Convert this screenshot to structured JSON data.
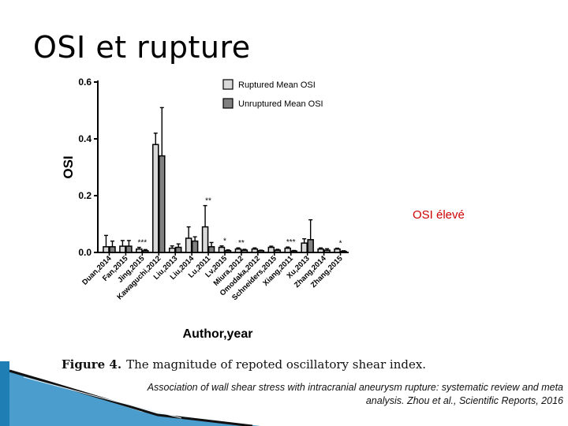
{
  "slide": {
    "title": "OSI et rupture",
    "annotation": "OSI élevé",
    "caption_label": "Figure 4.",
    "caption_text": "The magnitude of repoted oscillatory shear index.",
    "citation": "Association of wall shear stress with intracranial aneurysm rupture: systematic review and meta analysis. Zhou et al., Scientific Reports, 2016"
  },
  "colors": {
    "ruptured": "#d9d9d9",
    "unruptured": "#808080",
    "annotation": "#cc0000",
    "deco_blue": "#1f7fb5"
  },
  "chart_data": {
    "type": "bar",
    "xlabel": "Author,year",
    "ylabel": "OSI",
    "ylim": [
      0,
      0.6
    ],
    "yticks": [
      "0.0",
      "0.2",
      "0.4",
      "0.6"
    ],
    "legend_position": "top-right",
    "categories": [
      "Duan,2014",
      "Fan,2015",
      "Jing,2015",
      "Kawaguchi,2012",
      "Liu,2013",
      "Liu,2014",
      "Lu,2011",
      "Lv,2015",
      "Miura,2012",
      "Omodaka,2012",
      "Schneiders,2015",
      "Xiang,2011",
      "Xu,2013",
      "Zhang,2014",
      "Zhang,2015"
    ],
    "series": [
      {
        "name": "Ruptured Mean OSI",
        "values": [
          0.02,
          0.022,
          0.012,
          0.38,
          0.015,
          0.05,
          0.09,
          0.018,
          0.012,
          0.012,
          0.018,
          0.015,
          0.033,
          0.012,
          0.012
        ],
        "errors": [
          0.04,
          0.02,
          0.006,
          0.04,
          0.008,
          0.04,
          0.075,
          0.005,
          0.004,
          0.004,
          0.004,
          0.004,
          0.015,
          0.004,
          0.003
        ]
      },
      {
        "name": "Unruptured Mean OSI",
        "values": [
          0.02,
          0.022,
          0.006,
          0.34,
          0.018,
          0.04,
          0.02,
          0.006,
          0.008,
          0.006,
          0.008,
          0.005,
          0.045,
          0.008,
          0.004
        ],
        "errors": [
          0.02,
          0.02,
          0.004,
          0.17,
          0.012,
          0.015,
          0.015,
          0.003,
          0.003,
          0.002,
          0.003,
          0.002,
          0.07,
          0.005,
          0.002
        ]
      }
    ],
    "significance": [
      "",
      "",
      "***",
      "",
      "",
      "",
      "**",
      "*",
      "**",
      "",
      "",
      "***",
      "",
      "",
      "*"
    ]
  }
}
